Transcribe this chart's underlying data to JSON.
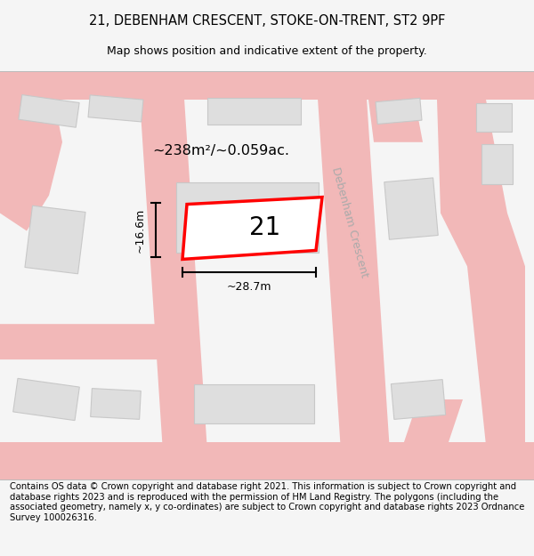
{
  "title_line1": "21, DEBENHAM CRESCENT, STOKE-ON-TRENT, ST2 9PF",
  "title_line2": "Map shows position and indicative extent of the property.",
  "footer_text": "Contains OS data © Crown copyright and database right 2021. This information is subject to Crown copyright and database rights 2023 and is reproduced with the permission of HM Land Registry. The polygons (including the associated geometry, namely x, y co-ordinates) are subject to Crown copyright and database rights 2023 Ordnance Survey 100026316.",
  "background_color": "#f5f5f5",
  "map_background": "#ffffff",
  "road_color": "#f2b8b8",
  "building_color": "#dedede",
  "building_edge": "#c8c8c8",
  "plot_edge": "#ff0000",
  "area_text": "~238m²/~0.059ac.",
  "width_text": "~28.7m",
  "height_text": "~16.6m",
  "number_text": "21",
  "street_name": "Debenham Crescent",
  "title_fontsize": 10.5,
  "subtitle_fontsize": 9,
  "footer_fontsize": 7.2,
  "street_fontsize": 9
}
